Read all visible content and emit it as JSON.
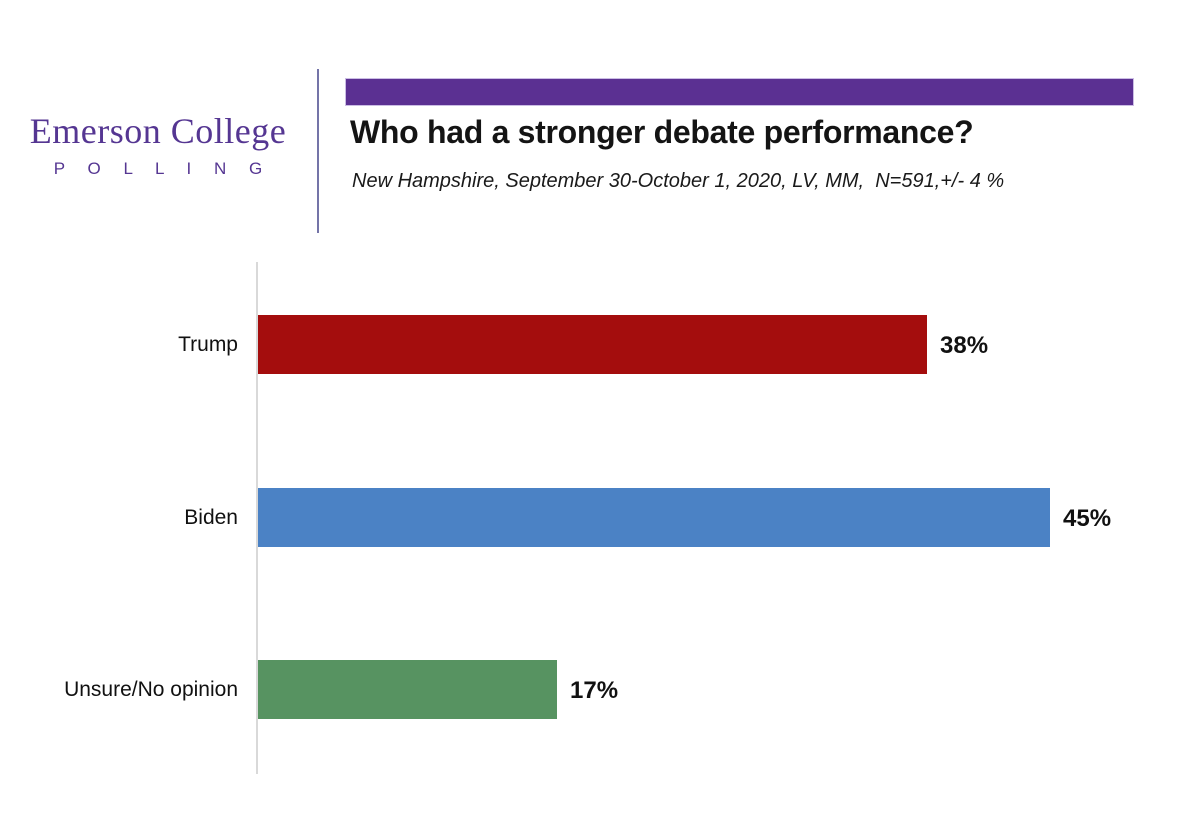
{
  "logo": {
    "title": "Emerson College",
    "subtitle": "P O L L I N G",
    "color": "#553692"
  },
  "header": {
    "title": "Who had a stronger debate performance?",
    "subtitle": "New Hampshire, September 30-October 1, 2020, LV, MM,  N=591,+/- 4 %",
    "banner_color": "#5b3092"
  },
  "chart_data": {
    "type": "bar",
    "orientation": "horizontal",
    "title": "Who had a stronger debate performance?",
    "subtitle": "New Hampshire, September 30-October 1, 2020, LV, MM,  N=591,+/- 4 %",
    "categories": [
      "Trump",
      "Biden",
      "Unsure/No opinion"
    ],
    "values": [
      38,
      45,
      17
    ],
    "value_labels": [
      "38%",
      "45%",
      "17%"
    ],
    "bar_colors": [
      "#a40d0d",
      "#4b82c5",
      "#579361"
    ],
    "xlabel": "",
    "ylabel": "",
    "xlim": [
      0,
      50
    ],
    "grid": false,
    "legend": false,
    "axis_line_color": "#d9d9d9"
  }
}
